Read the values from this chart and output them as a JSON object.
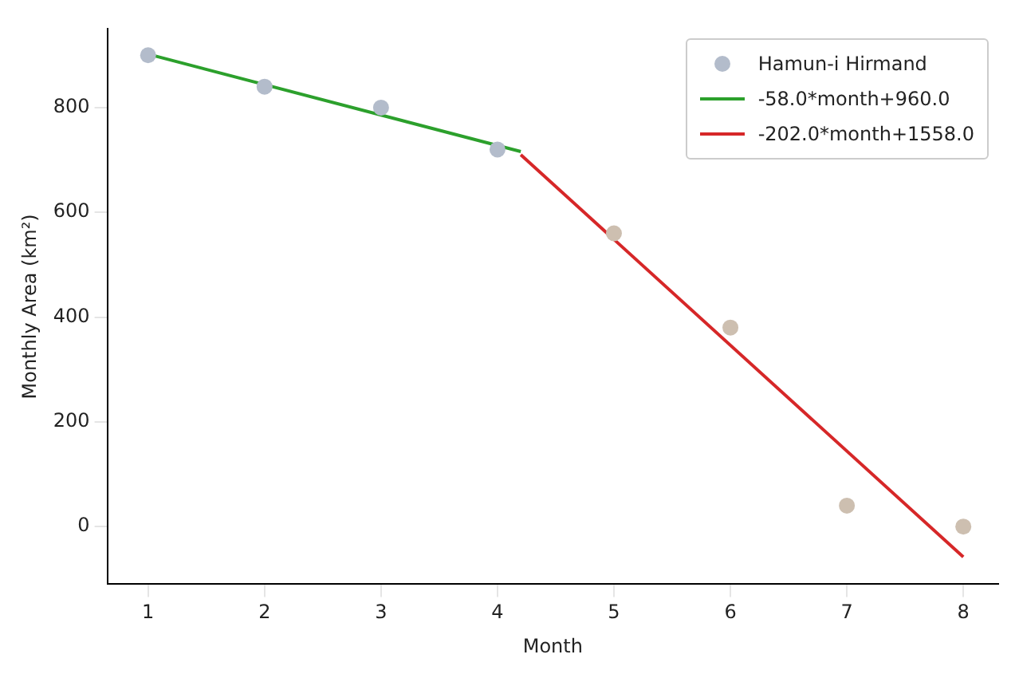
{
  "chart_data": {
    "type": "scatter",
    "xlabel": "Month",
    "ylabel": "Monthly Area (km²)",
    "xlim": [
      0.65,
      8.3
    ],
    "xticks": [
      1,
      2,
      3,
      4,
      5,
      6,
      7,
      8
    ],
    "ylim": [
      -110,
      950
    ],
    "yticks": [
      0,
      200,
      400,
      600,
      800
    ],
    "grid": false,
    "legend": "top right",
    "marker": "circle",
    "series": [
      {
        "name": "Hamun-i Hirmand",
        "color": "#b3bccb",
        "colors": [
          "#b3bccb",
          "#b3bccb",
          "#b3bccb",
          "#b3bccb",
          "#cdbfb0",
          "#cdbfb0",
          "#cdbfb0",
          "#cdbfb0"
        ],
        "x": [
          1,
          2,
          3,
          4,
          5,
          6,
          7,
          8
        ],
        "values": [
          900,
          840,
          800,
          720,
          560,
          380,
          40,
          0
        ]
      },
      {
        "name": "-58.0*month+960.0",
        "type": "line",
        "marker": "none",
        "color": "#2ca02c",
        "x": [
          1,
          4.2
        ],
        "values": [
          902,
          716
        ]
      },
      {
        "name": "-202.0*month+1558.0",
        "type": "line",
        "marker": "none",
        "color": "#d62728",
        "x": [
          4.2,
          8
        ],
        "values": [
          710,
          -58
        ]
      }
    ]
  }
}
